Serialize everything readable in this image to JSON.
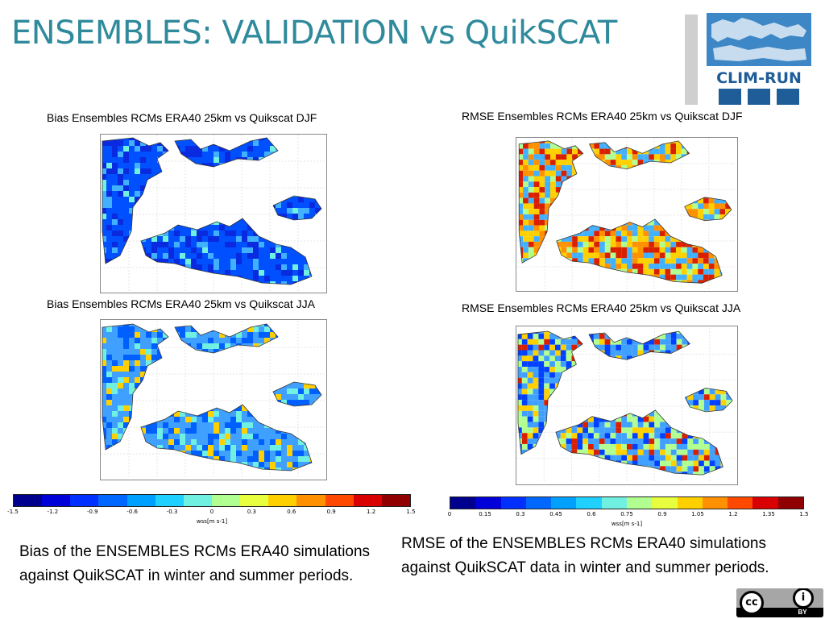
{
  "title": "ENSEMBLES: VALIDATION vs QuikSCAT",
  "logo": {
    "text": "CLIM-RUN"
  },
  "maps": {
    "bias_djf": {
      "title": "Bias Ensembles RCMs ERA40 25km vs Quikscat DJF"
    },
    "rmse_djf": {
      "title": "RMSE Ensembles RCMs ERA40 25km vs Quikscat DJF"
    },
    "bias_jja": {
      "title": "Bias Ensembles RCMs ERA40 25km vs Quikscat JJA"
    },
    "rmse_jja": {
      "title": "RMSE Ensembles RCMs ERA40 25km vs Quikscat JJA"
    }
  },
  "colorbars": {
    "bias": {
      "ticks": [
        "-1.5",
        "-1.2",
        "-0.9",
        "-0.6",
        "-0.3",
        "0",
        "0.3",
        "0.6",
        "0.9",
        "1.2",
        "1.5"
      ],
      "unit": "wss[m s-1]",
      "colors": [
        "#00008f",
        "#0000d8",
        "#0030ff",
        "#0068ff",
        "#00a0ff",
        "#20d0ff",
        "#70f0e0",
        "#b0ff90",
        "#e8ff40",
        "#ffd000",
        "#ff9000",
        "#ff4800",
        "#d80000",
        "#900000"
      ]
    },
    "rmse": {
      "ticks": [
        "0",
        "0.15",
        "0.3",
        "0.45",
        "0.6",
        "0.75",
        "0.9",
        "1.05",
        "1.2",
        "1.35",
        "1.5"
      ],
      "unit": "wss[m s-1]",
      "colors": [
        "#00008f",
        "#0000d8",
        "#0030ff",
        "#0068ff",
        "#00a0ff",
        "#20d0ff",
        "#70f0e0",
        "#b0ff90",
        "#e8ff40",
        "#ffd000",
        "#ff9000",
        "#ff4800",
        "#d80000",
        "#900000"
      ]
    }
  },
  "captions": {
    "left": "Bias of the ENSEMBLES RCMs ERA40 simulations against QuikSCAT in winter and summer periods.",
    "right": "RMSE  of the ENSEMBLES RCMs ERA40 simulations against QuikSCAT  data in winter and summer periods."
  },
  "license": {
    "label": "BY"
  }
}
